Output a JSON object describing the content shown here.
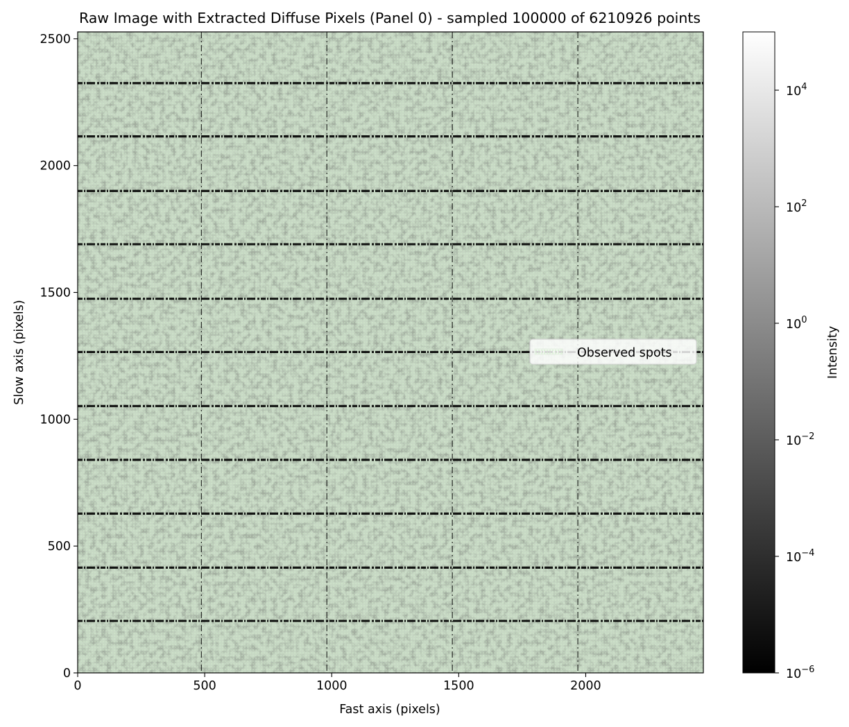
{
  "chart_data": {
    "type": "heatmap",
    "title": "Raw Image with Extracted Diffuse Pixels (Panel 0) - sampled 100000 of 6210926 points",
    "xlabel": "Fast axis (pixels)",
    "ylabel": "Slow axis (pixels)",
    "xlim": [
      0,
      2463
    ],
    "ylim": [
      0,
      2527
    ],
    "x_ticks": [
      0,
      500,
      1000,
      1500,
      2000
    ],
    "y_ticks": [
      0,
      500,
      1000,
      1500,
      2000,
      2500
    ],
    "x_tick_labels": [
      "0",
      "500",
      "1000",
      "1500",
      "2000"
    ],
    "y_tick_labels": [
      "0",
      "500",
      "1000",
      "1500",
      "2000",
      "2500"
    ],
    "horizontal_gap_rows": [
      205,
      415,
      628,
      840,
      1052,
      1265,
      1475,
      1690,
      1900,
      2115,
      2325
    ],
    "vertical_gap_cols": [
      487,
      981,
      1475,
      1969
    ],
    "legend": {
      "label": "Observed spots",
      "placement": "center-right"
    },
    "colorbar": {
      "label": "Intensity",
      "scale": "log",
      "range": [
        1e-06,
        100000
      ],
      "colormap": "gray",
      "ticks": [
        {
          "value": 1e-06,
          "base": "10",
          "exp": "−6"
        },
        {
          "value": 0.0001,
          "base": "10",
          "exp": "−4"
        },
        {
          "value": 0.01,
          "base": "10",
          "exp": "−2"
        },
        {
          "value": 1,
          "base": "10",
          "exp": "0"
        },
        {
          "value": 100,
          "base": "10",
          "exp": "2"
        },
        {
          "value": 10000,
          "base": "10",
          "exp": "4"
        }
      ]
    },
    "colors": {
      "image_base": "#8a8a8a",
      "image_light": "#c9dcc6",
      "diffuse_points": "#d6f5d0",
      "gap_lines": "#000000"
    }
  }
}
